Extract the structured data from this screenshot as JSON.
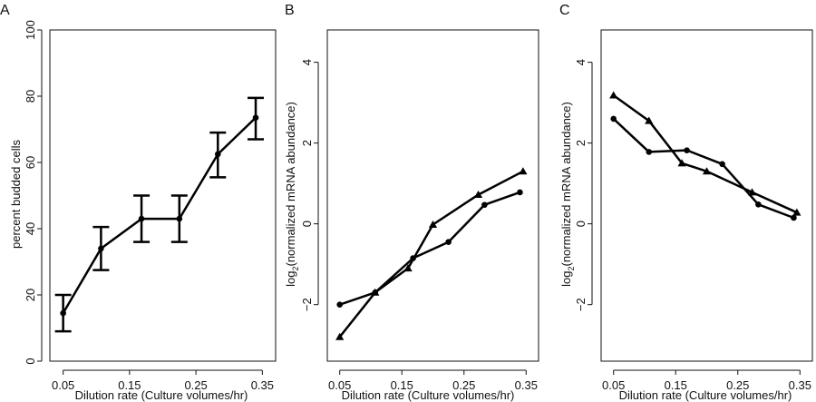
{
  "chart_data": [
    {
      "type": "line",
      "panel_label": "A",
      "xlabel": "Dilution rate (Culture volumes/hr)",
      "ylabel": "percent budded cells",
      "xlim": [
        0.03,
        0.37
      ],
      "ylim": [
        0,
        100
      ],
      "xticks": [
        "0.05",
        "0.15",
        "0.25",
        "0.35"
      ],
      "yticks": [
        "0",
        "20",
        "40",
        "60",
        "80",
        "100"
      ],
      "series": [
        {
          "name": "percent budded cells",
          "marker": "circle",
          "x": [
            0.05,
            0.107,
            0.168,
            0.225,
            0.283,
            0.34
          ],
          "y": [
            14.5,
            34,
            43,
            43,
            62.5,
            73.5
          ],
          "error_low": [
            9,
            27.5,
            36,
            36,
            55.5,
            67
          ],
          "error_high": [
            20,
            40.5,
            50,
            50,
            69,
            79.5
          ]
        }
      ]
    },
    {
      "type": "line",
      "panel_label": "B",
      "xlabel": "Dilution rate (Culture volumes/hr)",
      "ylabel_prefix": "log",
      "ylabel_sub": "2",
      "ylabel_suffix": "(normalized mRNA abundance)",
      "xlim": [
        0.03,
        0.37
      ],
      "ylim": [
        -3.4,
        4.8
      ],
      "xticks": [
        "0.05",
        "0.15",
        "0.25",
        "0.35"
      ],
      "yticks": [
        "−2",
        "0",
        "2",
        "4"
      ],
      "series": [
        {
          "name": "circles",
          "marker": "circle",
          "x": [
            0.05,
            0.107,
            0.168,
            0.225,
            0.283,
            0.34
          ],
          "y": [
            -2.0,
            -1.7,
            -0.85,
            -0.45,
            0.47,
            0.78
          ]
        },
        {
          "name": "triangles",
          "marker": "triangle",
          "x": [
            0.05,
            0.107,
            0.16,
            0.2,
            0.273,
            0.345
          ],
          "y": [
            -2.8,
            -1.7,
            -1.1,
            -0.02,
            0.72,
            1.3
          ]
        }
      ]
    },
    {
      "type": "line",
      "panel_label": "C",
      "xlabel": "Dilution rate (Culture volumes/hr)",
      "ylabel_prefix": "log",
      "ylabel_sub": "2",
      "ylabel_suffix": "(normalized mRNA abundance)",
      "xlim": [
        0.03,
        0.37
      ],
      "ylim": [
        -3.4,
        4.8
      ],
      "xticks": [
        "0.05",
        "0.15",
        "0.25",
        "0.35"
      ],
      "yticks": [
        "−2",
        "0",
        "2",
        "4"
      ],
      "series": [
        {
          "name": "circles",
          "marker": "circle",
          "x": [
            0.05,
            0.107,
            0.168,
            0.225,
            0.283,
            0.34
          ],
          "y": [
            2.6,
            1.78,
            1.82,
            1.48,
            0.48,
            0.15
          ]
        },
        {
          "name": "triangles",
          "marker": "triangle",
          "x": [
            0.05,
            0.107,
            0.16,
            0.2,
            0.273,
            0.345
          ],
          "y": [
            3.18,
            2.55,
            1.5,
            1.3,
            0.78,
            0.28
          ]
        }
      ]
    }
  ]
}
